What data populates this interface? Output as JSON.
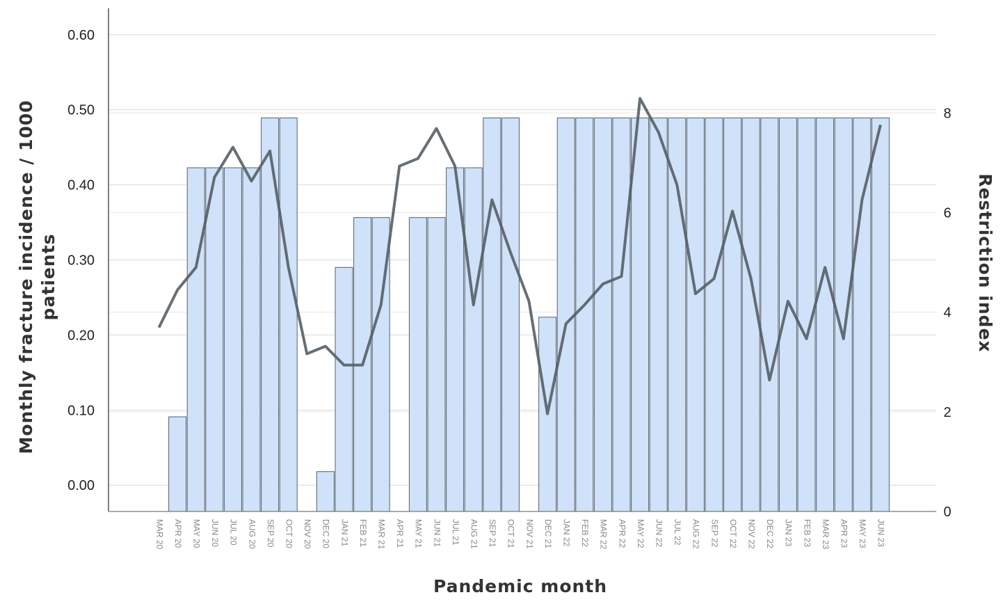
{
  "chart_data": {
    "type": "bar",
    "title": "",
    "xlabel": "Pandemic month",
    "ylabel_left_lines": [
      "Monthly fracture incidence / 1000",
      "patients"
    ],
    "ylabel_right": "Restriction index",
    "categories": [
      "MAR 20",
      "APR 20",
      "MAY 20",
      "JUN 20",
      "JUL 20",
      "AUG 20",
      "SEP 20",
      "OCT 20",
      "NOV 20",
      "DEC 20",
      "JAN 21",
      "FEB 21",
      "MAR 21",
      "APR 21",
      "MAY 21",
      "JUN 21",
      "JUL 21",
      "AUG 21",
      "SEP 21",
      "OCT 21",
      "NOV 21",
      "DEC 21",
      "JAN 22",
      "FEB 22",
      "MAR 22",
      "APR 22",
      "MAY 22",
      "JUN 22",
      "JUL 22",
      "AUG 22",
      "SEP 22",
      "OCT 22",
      "NOV 22",
      "DEC 22",
      "JAN 23",
      "FEB 23",
      "MAR 23",
      "APR 23",
      "MAY 23",
      "JUN 23"
    ],
    "left_axis": {
      "ylim": [
        -0.035,
        0.635
      ],
      "ticks": [
        "0.00",
        "0.10",
        "0.20",
        "0.30",
        "0.40",
        "0.50",
        "0.60"
      ],
      "tick_values": [
        0.0,
        0.1,
        0.2,
        0.3,
        0.4,
        0.5,
        0.6
      ]
    },
    "right_axis": {
      "ylim": [
        0,
        10.1
      ],
      "ticks": [
        "0",
        "2",
        "4",
        "6",
        "8"
      ],
      "tick_values": [
        0,
        2,
        4,
        6,
        8
      ]
    },
    "series": [
      {
        "name": "",
        "type": "bar",
        "axis": "right",
        "color": "#cfe2fa",
        "values": [
          0,
          1.9,
          6.9,
          6.9,
          6.9,
          6.9,
          7.9,
          7.9,
          0,
          0.8,
          4.9,
          5.9,
          5.9,
          0,
          5.9,
          5.9,
          6.9,
          6.9,
          7.9,
          7.9,
          0,
          3.9,
          7.9,
          7.9,
          7.9,
          7.9,
          7.9,
          7.9,
          7.9,
          7.9,
          7.9,
          7.9,
          7.9,
          7.9,
          7.9,
          7.9,
          7.9,
          7.9,
          7.9,
          7.9
        ]
      },
      {
        "name": "",
        "type": "line",
        "axis": "left",
        "color": "#555f66",
        "values": [
          0.21,
          0.26,
          0.29,
          0.41,
          0.45,
          0.405,
          0.445,
          0.29,
          0.175,
          0.185,
          0.16,
          0.16,
          0.24,
          0.425,
          0.435,
          0.475,
          0.425,
          0.24,
          0.38,
          0.31,
          0.245,
          0.095,
          0.215,
          0.24,
          0.268,
          0.278,
          0.515,
          0.47,
          0.4,
          0.255,
          0.275,
          0.365,
          0.275,
          0.14,
          0.245,
          0.195,
          0.29,
          0.195,
          0.38,
          0.48
        ]
      }
    ],
    "grid": true,
    "legend": "none"
  }
}
